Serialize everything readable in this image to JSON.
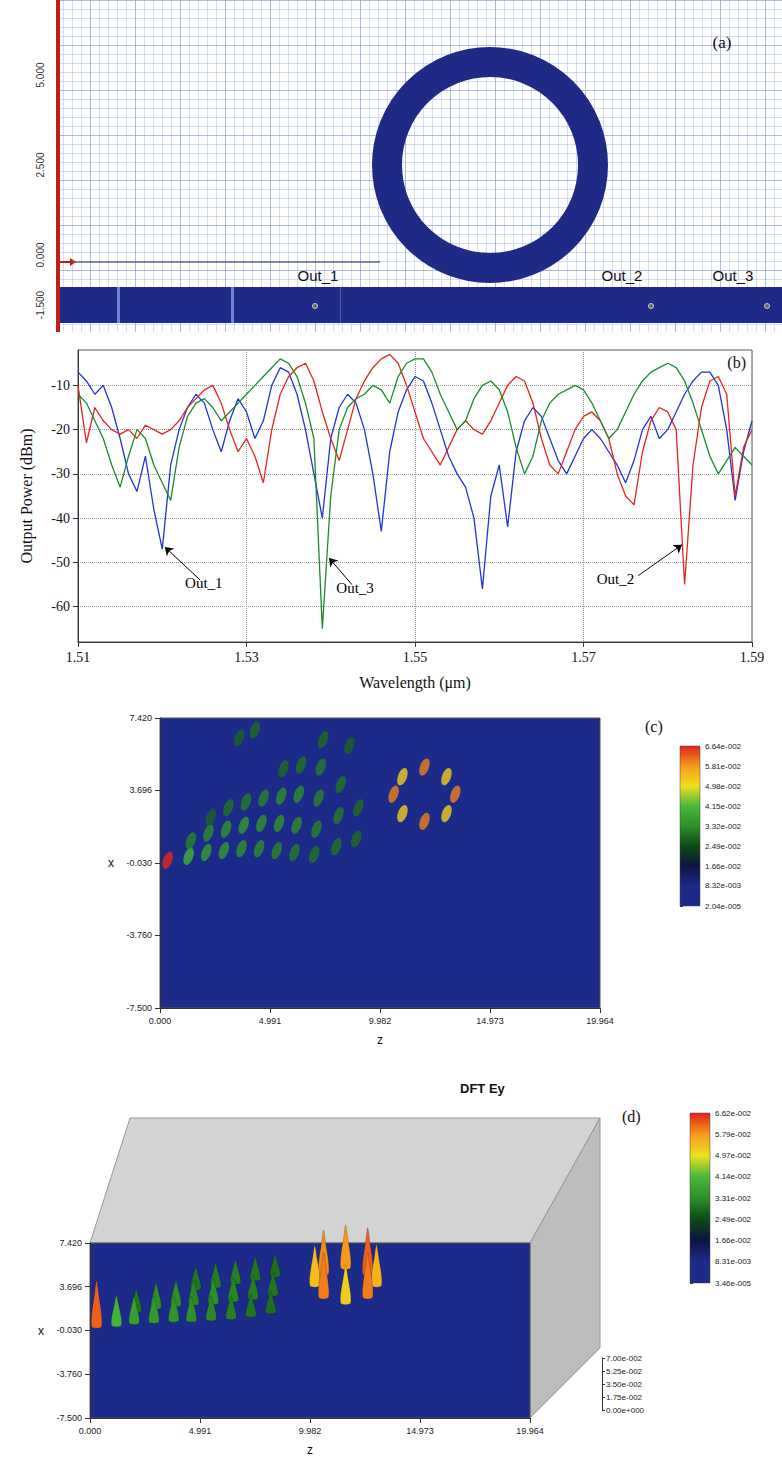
{
  "panel_a": {
    "label": "(a)",
    "axis_ticks": [
      "5.000",
      "2.500",
      "0.000",
      "-1.500"
    ],
    "ports": [
      "Out_1",
      "Out_2",
      "Out_3"
    ]
  },
  "chart_data": [
    {
      "type": "line",
      "panel": "(b)",
      "x_label": "Wavelength (μm)",
      "y_label": "Output Power (dBm)",
      "x": [
        1.51,
        1.511,
        1.512,
        1.513,
        1.514,
        1.515,
        1.516,
        1.517,
        1.518,
        1.519,
        1.52,
        1.521,
        1.522,
        1.523,
        1.524,
        1.525,
        1.526,
        1.527,
        1.528,
        1.529,
        1.53,
        1.531,
        1.532,
        1.533,
        1.534,
        1.535,
        1.536,
        1.537,
        1.538,
        1.539,
        1.54,
        1.541,
        1.542,
        1.543,
        1.544,
        1.545,
        1.546,
        1.547,
        1.548,
        1.549,
        1.55,
        1.551,
        1.552,
        1.553,
        1.554,
        1.555,
        1.556,
        1.557,
        1.558,
        1.559,
        1.56,
        1.561,
        1.562,
        1.563,
        1.564,
        1.565,
        1.566,
        1.567,
        1.568,
        1.569,
        1.57,
        1.571,
        1.572,
        1.573,
        1.574,
        1.575,
        1.576,
        1.577,
        1.578,
        1.579,
        1.58,
        1.581,
        1.582,
        1.583,
        1.584,
        1.585,
        1.586,
        1.587,
        1.588,
        1.589,
        1.59
      ],
      "series": [
        {
          "name": "Out_1",
          "color": "#1f35d6",
          "values": [
            -7,
            -9,
            -12,
            -10,
            -15,
            -22,
            -30,
            -34,
            -26,
            -38,
            -47,
            -28,
            -20,
            -15,
            -12,
            -14,
            -20,
            -25,
            -18,
            -13,
            -16,
            -22,
            -18,
            -10,
            -6,
            -7,
            -12,
            -20,
            -30,
            -40,
            -22,
            -15,
            -12,
            -14,
            -20,
            -30,
            -43,
            -25,
            -16,
            -11,
            -8,
            -9,
            -14,
            -20,
            -26,
            -30,
            -33,
            -40,
            -56,
            -35,
            -28,
            -42,
            -25,
            -18,
            -15,
            -17,
            -22,
            -27,
            -30,
            -26,
            -22,
            -20,
            -22,
            -25,
            -28,
            -32,
            -27,
            -20,
            -17,
            -22,
            -20,
            -16,
            -12,
            -9,
            -7,
            -7,
            -10,
            -20,
            -36,
            -25,
            -18
          ]
        },
        {
          "name": "Out_2",
          "color": "#e4261e",
          "values": [
            -10,
            -23,
            -15,
            -18,
            -20,
            -21,
            -20,
            -22,
            -19,
            -20,
            -21,
            -20,
            -18,
            -15,
            -13,
            -11,
            -10,
            -14,
            -20,
            -25,
            -22,
            -26,
            -32,
            -20,
            -12,
            -8,
            -6,
            -5,
            -9,
            -16,
            -22,
            -27,
            -20,
            -13,
            -9,
            -6,
            -4,
            -3,
            -5,
            -10,
            -16,
            -22,
            -25,
            -28,
            -24,
            -20,
            -18,
            -20,
            -21,
            -18,
            -14,
            -10,
            -8,
            -9,
            -14,
            -22,
            -28,
            -30,
            -25,
            -20,
            -17,
            -16,
            -18,
            -22,
            -30,
            -35,
            -37,
            -25,
            -18,
            -15,
            -16,
            -20,
            -55,
            -28,
            -15,
            -9,
            -8,
            -12,
            -35,
            -24,
            -20
          ]
        },
        {
          "name": "Out_3",
          "color": "#1b8c2c",
          "values": [
            -12,
            -14,
            -18,
            -22,
            -28,
            -33,
            -26,
            -20,
            -22,
            -28,
            -32,
            -36,
            -24,
            -17,
            -14,
            -13,
            -15,
            -18,
            -16,
            -14,
            -12,
            -10,
            -8,
            -6,
            -4,
            -5,
            -8,
            -14,
            -22,
            -65,
            -35,
            -20,
            -15,
            -13,
            -12,
            -10,
            -11,
            -14,
            -8,
            -5,
            -4,
            -4,
            -7,
            -12,
            -16,
            -20,
            -18,
            -13,
            -10,
            -9,
            -11,
            -16,
            -24,
            -30,
            -26,
            -18,
            -14,
            -12,
            -11,
            -10,
            -11,
            -14,
            -18,
            -22,
            -20,
            -16,
            -12,
            -9,
            -7,
            -6,
            -5,
            -6,
            -9,
            -14,
            -20,
            -26,
            -30,
            -27,
            -24,
            -26,
            -28
          ]
        }
      ],
      "xlim": [
        1.51,
        1.59
      ],
      "xticks": [
        1.51,
        1.53,
        1.55,
        1.57,
        1.59
      ],
      "ylim": [
        -68,
        -2
      ],
      "yticks": [
        -60,
        -50,
        -40,
        -30,
        -20,
        -10
      ],
      "grid": true,
      "annotations": [
        {
          "text": "Out_1",
          "x": 1.5245,
          "y": -54,
          "target": [
            1.5203,
            -46.5
          ]
        },
        {
          "text": "Out_3",
          "x": 1.5425,
          "y": -55,
          "target": [
            1.5398,
            -49
          ]
        },
        {
          "text": "Out_2",
          "x": 1.5765,
          "y": -53,
          "target": [
            1.5817,
            -46
          ]
        }
      ]
    },
    {
      "type": "heatmap",
      "panel": "(c)",
      "x_label": "z",
      "y_label": "x",
      "xlim": [
        0,
        19.964
      ],
      "xticks": [
        {
          "value": 0,
          "label": "0.000"
        },
        4.991,
        9.982,
        14.973,
        19.964
      ],
      "ylim": [
        -7.5,
        7.42
      ],
      "yticks": [
        {
          "value": -7.5,
          "label": "-7.500"
        },
        {
          "value": -3.76,
          "label": "-3.760"
        },
        {
          "value": -0.03,
          "label": "-0.030"
        },
        3.696,
        {
          "value": 7.42,
          "label": "7.420"
        }
      ],
      "spots": [
        [
          0.35,
          0.1,
          0.066
        ],
        [
          1.3,
          0.3,
          0.04
        ],
        [
          1.4,
          1.1,
          0.032
        ],
        [
          2.1,
          0.5,
          0.036
        ],
        [
          2.2,
          1.5,
          0.033
        ],
        [
          2.3,
          2.3,
          0.028
        ],
        [
          2.9,
          0.6,
          0.035
        ],
        [
          3.0,
          1.7,
          0.034
        ],
        [
          3.1,
          2.8,
          0.03
        ],
        [
          3.7,
          0.7,
          0.034
        ],
        [
          3.8,
          1.9,
          0.035
        ],
        [
          3.9,
          3.1,
          0.031
        ],
        [
          3.6,
          6.4,
          0.028
        ],
        [
          4.5,
          0.7,
          0.033
        ],
        [
          4.6,
          2.0,
          0.034
        ],
        [
          4.7,
          3.3,
          0.032
        ],
        [
          4.3,
          6.8,
          0.029
        ],
        [
          5.3,
          0.6,
          0.032
        ],
        [
          5.4,
          2.0,
          0.034
        ],
        [
          5.5,
          3.4,
          0.033
        ],
        [
          5.6,
          4.8,
          0.029
        ],
        [
          6.1,
          0.5,
          0.031
        ],
        [
          6.2,
          1.9,
          0.033
        ],
        [
          6.3,
          3.5,
          0.033
        ],
        [
          6.4,
          5.0,
          0.03
        ],
        [
          7.0,
          0.4,
          0.03
        ],
        [
          7.1,
          1.7,
          0.032
        ],
        [
          7.2,
          3.3,
          0.032
        ],
        [
          7.3,
          4.9,
          0.031
        ],
        [
          7.4,
          6.3,
          0.029
        ],
        [
          8.0,
          0.8,
          0.03
        ],
        [
          8.1,
          2.4,
          0.031
        ],
        [
          8.2,
          4.0,
          0.03
        ],
        [
          8.6,
          6.0,
          0.028
        ],
        [
          8.9,
          1.2,
          0.029
        ],
        [
          9.0,
          2.8,
          0.029
        ],
        [
          12.0,
          4.9,
          0.06
        ],
        [
          13.0,
          4.4,
          0.052
        ],
        [
          13.4,
          3.5,
          0.06
        ],
        [
          13.0,
          2.5,
          0.052
        ],
        [
          12.0,
          2.1,
          0.06
        ],
        [
          11.0,
          2.5,
          0.052
        ],
        [
          10.6,
          3.5,
          0.06
        ],
        [
          11.0,
          4.4,
          0.052
        ]
      ],
      "colorbar": {
        "range": [
          2.04e-05,
          0.0664
        ],
        "ticks": [
          {
            "value": 2.04e-05,
            "label": "2.04e-005"
          },
          {
            "value": 0.00832,
            "label": "8.32e-003"
          },
          {
            "value": 0.0166,
            "label": "1.66e-002"
          },
          {
            "value": 0.0249,
            "label": "2.49e-002"
          },
          {
            "value": 0.0332,
            "label": "3.32e-002"
          },
          {
            "value": 0.0415,
            "label": "4.15e-002"
          },
          {
            "value": 0.0498,
            "label": "4.98e-002"
          },
          {
            "value": 0.0581,
            "label": "5.81e-002"
          },
          {
            "value": 0.0664,
            "label": "6.64e-002"
          }
        ]
      }
    },
    {
      "type": "surface",
      "panel": "(d)",
      "title": "DFT Ey",
      "x_label": "z",
      "y_label": "x",
      "xlim": [
        0,
        19.964
      ],
      "xticks": [
        {
          "value": 0,
          "label": "0.000"
        },
        4.991,
        9.982,
        14.973,
        19.964
      ],
      "ylim": [
        -7.5,
        7.42
      ],
      "yticks": [
        {
          "value": -7.5,
          "label": "-7.500"
        },
        {
          "value": -3.76,
          "label": "-3.760"
        },
        {
          "value": -0.03,
          "label": "-0.030"
        },
        3.696,
        {
          "value": 7.42,
          "label": "7.420"
        }
      ],
      "zlim": [
        0,
        0.07
      ],
      "zticks": [
        {
          "value": 0,
          "label": "0.00e+000"
        },
        {
          "value": 0.0175,
          "label": "1.75e-002"
        },
        {
          "value": 0.035,
          "label": "3.50e-002"
        },
        {
          "value": 0.0525,
          "label": "5.25e-002"
        },
        {
          "value": 0.07,
          "label": "7.00e-002"
        }
      ],
      "spots": [
        [
          11.6,
          5.3,
          0.058
        ],
        [
          12.6,
          4.8,
          0.062
        ],
        [
          10.6,
          4.8,
          0.059
        ],
        [
          8.4,
          4.6,
          0.029
        ],
        [
          7.5,
          4.3,
          0.03
        ],
        [
          6.6,
          4.0,
          0.031
        ],
        [
          13.0,
          3.8,
          0.055
        ],
        [
          10.2,
          3.8,
          0.054
        ],
        [
          5.7,
          3.7,
          0.031
        ],
        [
          4.8,
          3.5,
          0.03
        ],
        [
          8.3,
          3.0,
          0.03
        ],
        [
          12.6,
          2.8,
          0.06
        ],
        [
          10.6,
          2.8,
          0.06
        ],
        [
          7.4,
          2.7,
          0.031
        ],
        [
          6.5,
          2.5,
          0.032
        ],
        [
          5.6,
          2.3,
          0.033
        ],
        [
          11.6,
          2.3,
          0.052
        ],
        [
          4.7,
          2.2,
          0.032
        ],
        [
          3.9,
          2.1,
          0.033
        ],
        [
          3.0,
          1.9,
          0.033
        ],
        [
          2.1,
          1.6,
          0.03
        ],
        [
          8.2,
          1.5,
          0.029
        ],
        [
          7.3,
          1.2,
          0.03
        ],
        [
          6.4,
          1.0,
          0.031
        ],
        [
          5.5,
          0.9,
          0.032
        ],
        [
          4.6,
          0.8,
          0.033
        ],
        [
          3.8,
          0.8,
          0.034
        ],
        [
          2.9,
          0.7,
          0.035
        ],
        [
          2.0,
          0.6,
          0.036
        ],
        [
          1.2,
          0.4,
          0.04
        ],
        [
          0.3,
          0.3,
          0.062
        ]
      ],
      "colorbar": {
        "range": [
          3.46e-05,
          0.0662
        ],
        "ticks": [
          {
            "value": 3.46e-05,
            "label": "3.46e-005"
          },
          {
            "value": 0.00831,
            "label": "8.31e-003"
          },
          {
            "value": 0.0166,
            "label": "1.66e-002"
          },
          {
            "value": 0.0249,
            "label": "2.49e-002"
          },
          {
            "value": 0.0331,
            "label": "3.31e-002"
          },
          {
            "value": 0.0414,
            "label": "4.14e-002"
          },
          {
            "value": 0.0497,
            "label": "4.97e-002"
          },
          {
            "value": 0.0579,
            "label": "5.79e-002"
          },
          {
            "value": 0.0662,
            "label": "6.62e-002"
          }
        ]
      }
    }
  ]
}
